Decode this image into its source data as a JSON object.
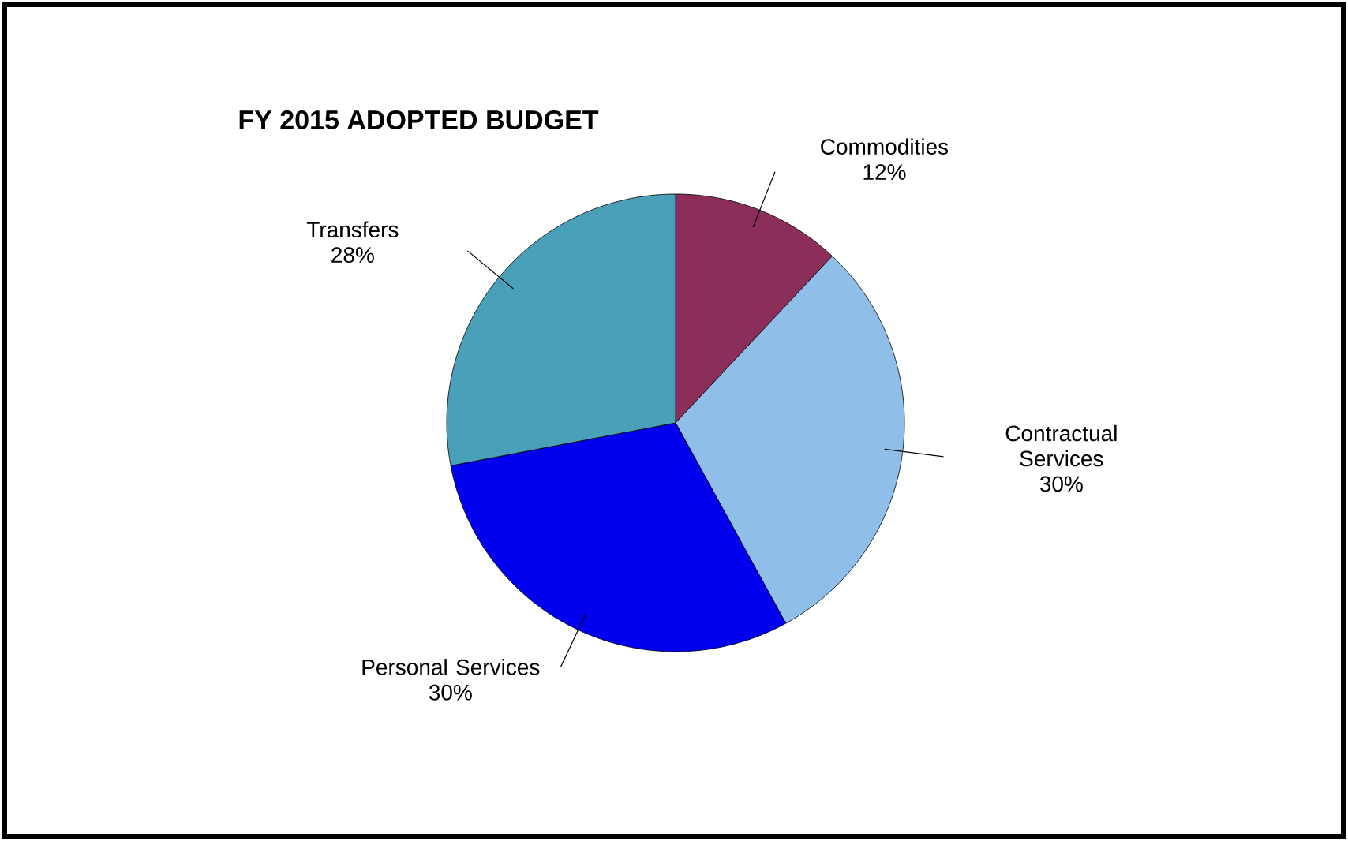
{
  "chart_data": {
    "type": "pie",
    "title": "FY 2015 ADOPTED BUDGET",
    "categories": [
      "Commodities",
      "Contractual Services",
      "Personal Services",
      "Transfers"
    ],
    "values": [
      12,
      30,
      30,
      28
    ],
    "value_labels": [
      "12%",
      "30%",
      "30%",
      "28%"
    ],
    "colors": [
      "#8b2f5a",
      "#8fbfe8",
      "#0000ee",
      "#4aa0b8"
    ]
  }
}
